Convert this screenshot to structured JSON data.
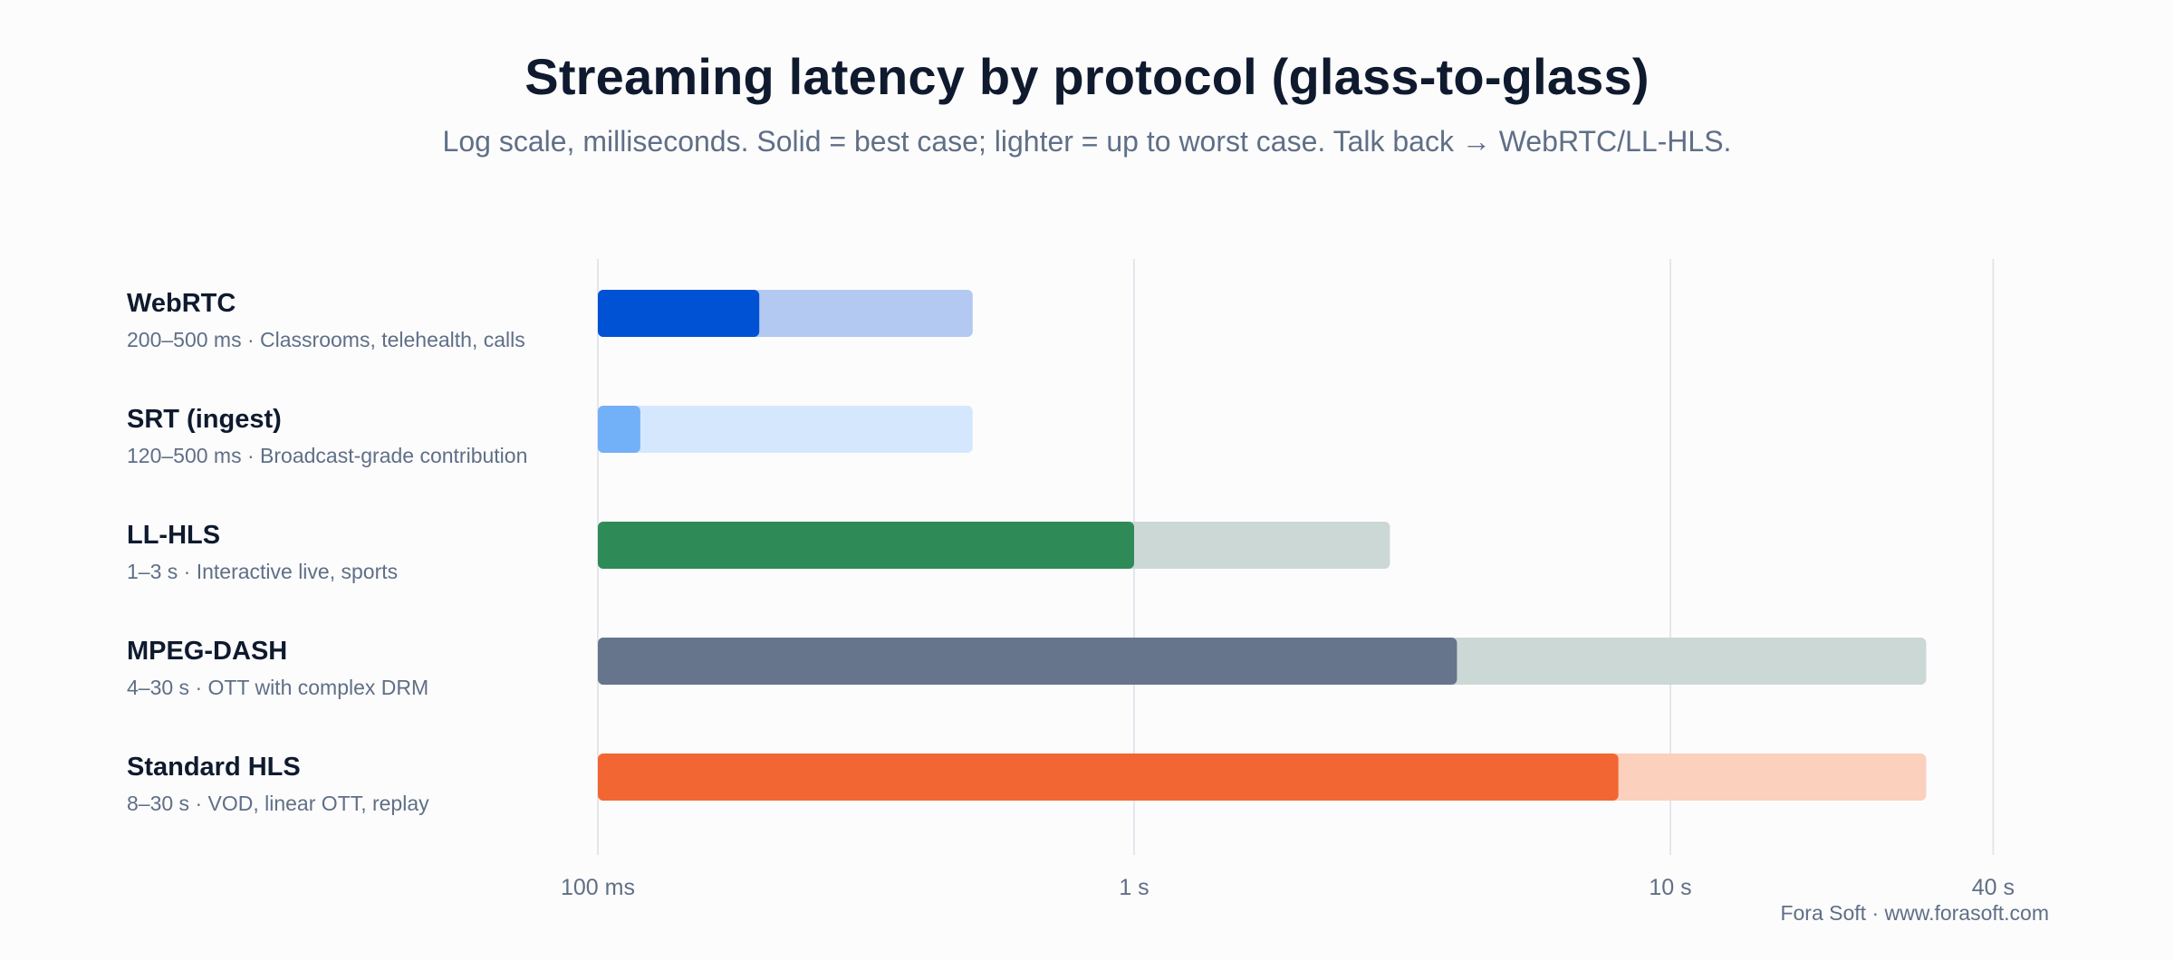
{
  "chart_data": {
    "type": "bar",
    "title": "Streaming latency by protocol (glass-to-glass)",
    "subtitle": "Log scale, milliseconds. Solid = best case; lighter = up to worst case. Talk back → WebRTC/LL-HLS.",
    "x_scale": "log",
    "x_unit": "ms",
    "xlim": [
      100,
      40000
    ],
    "x_ticks": [
      {
        "value": 100,
        "label": "100 ms"
      },
      {
        "value": 1000,
        "label": "1 s"
      },
      {
        "value": 10000,
        "label": "10 s"
      },
      {
        "value": 40000,
        "label": "40 s"
      }
    ],
    "grid": true,
    "series": [
      {
        "name": "WebRTC",
        "description": "200–500 ms · Classrooms, telehealth, calls",
        "best_ms": 200,
        "worst_ms": 500,
        "color": "#0052d4",
        "light_color": "#b3c9f2"
      },
      {
        "name": "SRT (ingest)",
        "description": "120–500 ms · Broadcast-grade contribution",
        "best_ms": 120,
        "worst_ms": 500,
        "color": "#72b0f8",
        "light_color": "#d5e7fd"
      },
      {
        "name": "LL-HLS",
        "description": "1–3 s · Interactive live, sports",
        "best_ms": 1000,
        "worst_ms": 3000,
        "color": "#2e8b57",
        "light_color": "#cbd8d6"
      },
      {
        "name": "MPEG-DASH",
        "description": "4–30 s · OTT with complex DRM",
        "best_ms": 4000,
        "worst_ms": 30000,
        "color": "#66758c",
        "light_color": "#cbd8d6"
      },
      {
        "name": "Standard HLS",
        "description": "8–30 s · VOD, linear OTT, replay",
        "best_ms": 8000,
        "worst_ms": 30000,
        "color": "#f26633",
        "light_color": "#fbd0bd"
      }
    ]
  },
  "footer": "Fora Soft · www.forasoft.com"
}
